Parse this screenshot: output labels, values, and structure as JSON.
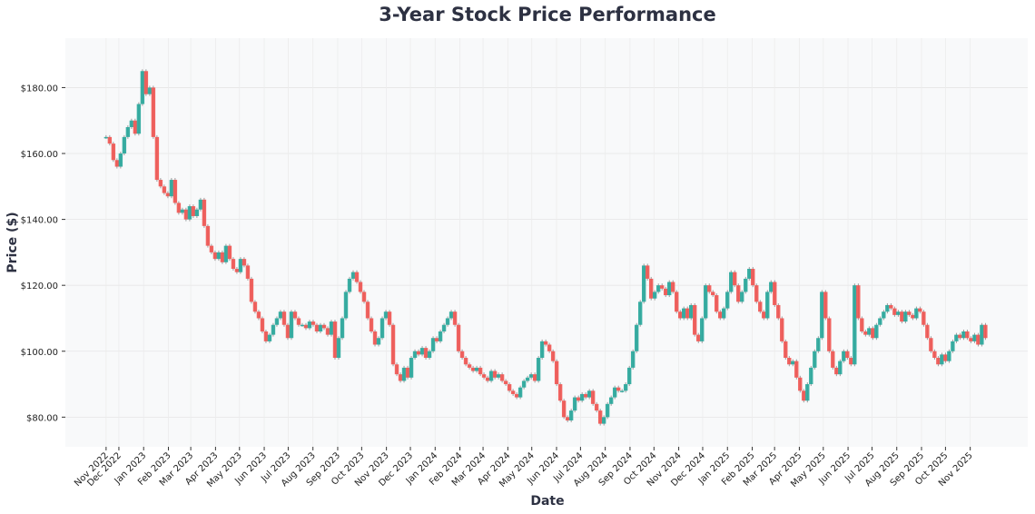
{
  "chart_data": {
    "type": "candlestick",
    "title": "3-Year Stock Price Performance",
    "xlabel": "Date",
    "ylabel": "Price ($)",
    "xlim": [
      "2022-09-25",
      "2026-01-12"
    ],
    "ylim": [
      71,
      195
    ],
    "data_range": [
      "2022-11-15",
      "2025-11-20"
    ],
    "grid": true,
    "colors": {
      "up": "#26a69a",
      "down": "#ef5350",
      "plot_bg": "#f8f9fa",
      "title": "#2d3142"
    },
    "yticks": [
      {
        "value": 80,
        "label": "$80.00"
      },
      {
        "value": 100,
        "label": "$100.00"
      },
      {
        "value": 120,
        "label": "$120.00"
      },
      {
        "value": 140,
        "label": "$140.00"
      },
      {
        "value": 160,
        "label": "$160.00"
      },
      {
        "value": 180,
        "label": "$180.00"
      }
    ],
    "xticks": [
      {
        "date": "2022-11-15",
        "label": "Nov 2022"
      },
      {
        "date": "2022-12-01",
        "label": "Dec 2022"
      },
      {
        "date": "2023-01-01",
        "label": "Jan 2023"
      },
      {
        "date": "2023-02-01",
        "label": "Feb 2023"
      },
      {
        "date": "2023-03-01",
        "label": "Mar 2023"
      },
      {
        "date": "2023-04-01",
        "label": "Apr 2023"
      },
      {
        "date": "2023-05-01",
        "label": "May 2023"
      },
      {
        "date": "2023-06-01",
        "label": "Jun 2023"
      },
      {
        "date": "2023-07-01",
        "label": "Jul 2023"
      },
      {
        "date": "2023-08-01",
        "label": "Aug 2023"
      },
      {
        "date": "2023-09-01",
        "label": "Sep 2023"
      },
      {
        "date": "2023-10-01",
        "label": "Oct 2023"
      },
      {
        "date": "2023-11-01",
        "label": "Nov 2023"
      },
      {
        "date": "2023-12-01",
        "label": "Dec 2023"
      },
      {
        "date": "2024-01-01",
        "label": "Jan 2024"
      },
      {
        "date": "2024-02-01",
        "label": "Feb 2024"
      },
      {
        "date": "2024-03-01",
        "label": "Mar 2024"
      },
      {
        "date": "2024-04-01",
        "label": "Apr 2024"
      },
      {
        "date": "2024-05-01",
        "label": "May 2024"
      },
      {
        "date": "2024-06-01",
        "label": "Jun 2024"
      },
      {
        "date": "2024-07-01",
        "label": "Jul 2024"
      },
      {
        "date": "2024-08-01",
        "label": "Aug 2024"
      },
      {
        "date": "2024-09-01",
        "label": "Sep 2024"
      },
      {
        "date": "2024-10-01",
        "label": "Oct 2024"
      },
      {
        "date": "2024-11-01",
        "label": "Nov 2024"
      },
      {
        "date": "2024-12-01",
        "label": "Dec 2024"
      },
      {
        "date": "2025-01-01",
        "label": "Jan 2025"
      },
      {
        "date": "2025-02-01",
        "label": "Feb 2025"
      },
      {
        "date": "2025-03-01",
        "label": "Mar 2025"
      },
      {
        "date": "2025-04-01",
        "label": "Apr 2025"
      },
      {
        "date": "2025-05-01",
        "label": "May 2025"
      },
      {
        "date": "2025-06-01",
        "label": "Jun 2025"
      },
      {
        "date": "2025-07-01",
        "label": "Jul 2025"
      },
      {
        "date": "2025-08-01",
        "label": "Aug 2025"
      },
      {
        "date": "2025-09-01",
        "label": "Sep 2025"
      },
      {
        "date": "2025-10-01",
        "label": "Oct 2025"
      },
      {
        "date": "2025-11-01",
        "label": "Nov 2025"
      }
    ],
    "close": [
      165,
      163,
      158,
      156,
      160,
      165,
      168,
      170,
      166,
      175,
      185,
      178,
      180,
      165,
      152,
      150,
      148,
      147,
      152,
      145,
      142,
      143,
      140,
      144,
      141,
      143,
      146,
      138,
      132,
      130,
      128,
      130,
      127,
      132,
      128,
      125,
      124,
      128,
      126,
      122,
      115,
      112,
      110,
      106,
      103,
      105,
      108,
      110,
      112,
      108,
      104,
      112,
      110,
      108,
      108,
      107,
      109,
      108,
      106,
      108,
      107,
      105,
      109,
      98,
      104,
      110,
      118,
      122,
      124,
      121,
      118,
      115,
      110,
      106,
      102,
      104,
      110,
      112,
      108,
      96,
      93,
      91,
      95,
      92,
      98,
      100,
      99,
      101,
      98,
      100,
      104,
      103,
      106,
      108,
      110,
      112,
      108,
      100,
      98,
      96,
      95,
      94,
      95,
      93,
      92,
      91,
      94,
      92,
      93,
      91,
      90,
      88,
      87,
      86,
      89,
      91,
      92,
      93,
      91,
      98,
      103,
      102,
      100,
      97,
      90,
      85,
      80,
      79,
      82,
      86,
      85,
      87,
      86,
      88,
      84,
      82,
      78,
      80,
      84,
      86,
      89,
      88,
      88,
      90,
      95,
      100,
      108,
      115,
      126,
      122,
      116,
      118,
      120,
      119,
      117,
      121,
      118,
      112,
      110,
      113,
      110,
      114,
      105,
      103,
      110,
      120,
      118,
      117,
      112,
      110,
      113,
      118,
      124,
      120,
      115,
      118,
      122,
      125,
      120,
      115,
      112,
      110,
      118,
      121,
      114,
      110,
      103,
      98,
      96,
      97,
      92,
      88,
      85,
      90,
      95,
      100,
      104,
      118,
      110,
      100,
      95,
      93,
      97,
      100,
      98,
      96,
      120,
      110,
      106,
      105,
      107,
      104,
      108,
      110,
      112,
      114,
      113,
      111,
      112,
      109,
      112,
      111,
      110,
      113,
      112,
      108,
      104,
      100,
      98,
      96,
      99,
      97,
      100,
      103,
      105,
      104,
      106,
      104,
      103,
      105,
      102,
      108,
      104
    ]
  }
}
